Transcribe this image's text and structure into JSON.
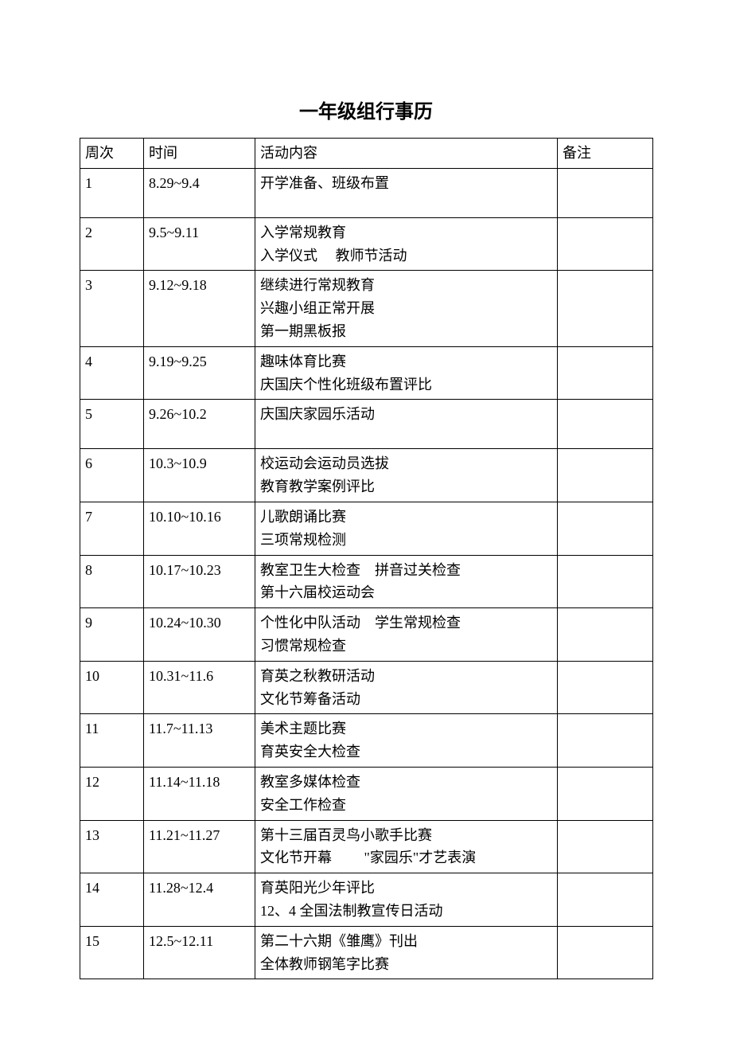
{
  "title": "一年级组行事历",
  "headers": {
    "week": "周次",
    "time": "时间",
    "content": "活动内容",
    "note": "备注"
  },
  "rows": [
    {
      "week": "1",
      "time": "8.29~9.4",
      "content": "开学准备、班级布置",
      "note": "",
      "tall": true
    },
    {
      "week": "2",
      "time": "9.5~9.11",
      "content": "入学常规教育\n入学仪式     教师节活动",
      "note": ""
    },
    {
      "week": "3",
      "time": "9.12~9.18",
      "content": "继续进行常规教育\n兴趣小组正常开展\n第一期黑板报",
      "note": ""
    },
    {
      "week": "4",
      "time": "9.19~9.25",
      "content": "趣味体育比赛\n庆国庆个性化班级布置评比",
      "note": ""
    },
    {
      "week": "5",
      "time": "9.26~10.2",
      "content": "庆国庆家园乐活动",
      "note": "",
      "tall": true
    },
    {
      "week": "6",
      "time": "10.3~10.9",
      "content": "校运动会运动员选拔\n教育教学案例评比",
      "note": ""
    },
    {
      "week": "7",
      "time": "10.10~10.16",
      "content": "儿歌朗诵比赛\n三项常规检测",
      "note": ""
    },
    {
      "week": "8",
      "time": "10.17~10.23",
      "content": "教室卫生大检查    拼音过关检查\n第十六届校运动会",
      "note": ""
    },
    {
      "week": "9",
      "time": "10.24~10.30",
      "content": "个性化中队活动    学生常规检查\n习惯常规检查",
      "note": ""
    },
    {
      "week": "10",
      "time": "10.31~11.6",
      "content": "育英之秋教研活动\n文化节筹备活动",
      "note": ""
    },
    {
      "week": "11",
      "time": "11.7~11.13",
      "content": "美术主题比赛\n育英安全大检查",
      "note": ""
    },
    {
      "week": "12",
      "time": "11.14~11.18",
      "content": "教室多媒体检查\n安全工作检查",
      "note": ""
    },
    {
      "week": "13",
      "time": "11.21~11.27",
      "content": "第十三届百灵鸟小歌手比赛\n文化节开幕         \"家园乐\"才艺表演",
      "note": ""
    },
    {
      "week": "14",
      "time": "11.28~12.4",
      "content": "育英阳光少年评比\n12、4 全国法制教宣传日活动",
      "note": ""
    },
    {
      "week": "15",
      "time": "12.5~12.11",
      "content": "第二十六期《雏鹰》刊出\n全体教师钢笔字比赛",
      "note": ""
    }
  ],
  "styles": {
    "background_color": "#ffffff",
    "border_color": "#000000",
    "text_color": "#000000",
    "title_fontsize": 24,
    "cell_fontsize": 18,
    "font_family": "SimSun"
  }
}
